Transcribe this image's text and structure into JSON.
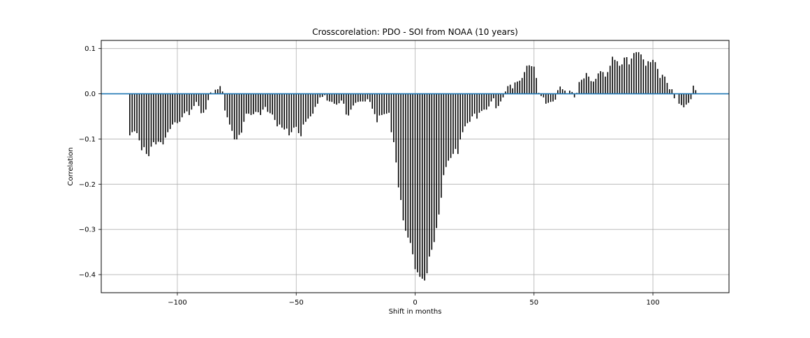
{
  "colors": {
    "stem": "#000000",
    "baseline": "#1f77b4",
    "grid": "#b0b0b0",
    "axes": "#000000",
    "background": "#ffffff"
  },
  "chart_data": {
    "type": "bar",
    "title": "Crosscorelation: PDO - SOI from NOAA (10 years)",
    "xlabel": "Shift in months",
    "ylabel": "Correlation",
    "xlim": [
      -132,
      132
    ],
    "ylim": [
      -0.44,
      0.118
    ],
    "grid": true,
    "legend": "none",
    "xticks": [
      {
        "value": -100,
        "label": "−100"
      },
      {
        "value": -50,
        "label": "−50"
      },
      {
        "value": 0,
        "label": "0"
      },
      {
        "value": 50,
        "label": "50"
      },
      {
        "value": 100,
        "label": "100"
      }
    ],
    "yticks": [
      {
        "value": 0.1,
        "label": "0.1"
      },
      {
        "value": 0.0,
        "label": "0.0"
      },
      {
        "value": -0.1,
        "label": "−0.1"
      },
      {
        "value": -0.2,
        "label": "−0.2"
      },
      {
        "value": -0.3,
        "label": "−0.3"
      },
      {
        "value": -0.4,
        "label": "−0.4"
      }
    ],
    "x_start": -120,
    "x_step": 1,
    "values": [
      -0.092,
      -0.085,
      -0.083,
      -0.087,
      -0.103,
      -0.125,
      -0.118,
      -0.133,
      -0.138,
      -0.117,
      -0.107,
      -0.112,
      -0.106,
      -0.107,
      -0.112,
      -0.097,
      -0.085,
      -0.078,
      -0.068,
      -0.063,
      -0.065,
      -0.062,
      -0.052,
      -0.043,
      -0.039,
      -0.047,
      -0.035,
      -0.027,
      -0.018,
      -0.027,
      -0.043,
      -0.042,
      -0.035,
      -0.014,
      0.003,
      0.001,
      0.009,
      0.01,
      0.017,
      0.005,
      -0.037,
      -0.052,
      -0.068,
      -0.082,
      -0.101,
      -0.101,
      -0.091,
      -0.086,
      -0.062,
      -0.044,
      -0.044,
      -0.047,
      -0.045,
      -0.04,
      -0.041,
      -0.047,
      -0.035,
      -0.029,
      -0.04,
      -0.043,
      -0.046,
      -0.058,
      -0.072,
      -0.068,
      -0.075,
      -0.079,
      -0.077,
      -0.092,
      -0.085,
      -0.075,
      -0.073,
      -0.087,
      -0.094,
      -0.068,
      -0.062,
      -0.055,
      -0.05,
      -0.044,
      -0.029,
      -0.022,
      -0.008,
      -0.007,
      -0.003,
      -0.015,
      -0.017,
      -0.018,
      -0.022,
      -0.024,
      -0.021,
      -0.015,
      -0.022,
      -0.046,
      -0.048,
      -0.035,
      -0.026,
      -0.02,
      -0.018,
      -0.017,
      -0.017,
      -0.017,
      -0.012,
      -0.018,
      -0.033,
      -0.045,
      -0.063,
      -0.048,
      -0.047,
      -0.045,
      -0.044,
      -0.042,
      -0.085,
      -0.107,
      -0.152,
      -0.207,
      -0.235,
      -0.28,
      -0.303,
      -0.318,
      -0.33,
      -0.355,
      -0.388,
      -0.395,
      -0.405,
      -0.409,
      -0.413,
      -0.397,
      -0.36,
      -0.345,
      -0.328,
      -0.297,
      -0.267,
      -0.23,
      -0.18,
      -0.162,
      -0.148,
      -0.142,
      -0.133,
      -0.122,
      -0.133,
      -0.101,
      -0.085,
      -0.072,
      -0.065,
      -0.062,
      -0.05,
      -0.044,
      -0.055,
      -0.042,
      -0.038,
      -0.035,
      -0.035,
      -0.028,
      -0.017,
      -0.01,
      -0.032,
      -0.027,
      -0.017,
      -0.008,
      0.005,
      0.017,
      0.02,
      0.012,
      0.025,
      0.027,
      0.029,
      0.035,
      0.048,
      0.062,
      0.063,
      0.061,
      0.06,
      0.035,
      0.002,
      -0.005,
      -0.008,
      -0.022,
      -0.02,
      -0.018,
      -0.017,
      -0.013,
      0.008,
      0.016,
      0.01,
      0.007,
      0.0,
      0.007,
      0.004,
      -0.008,
      0.002,
      0.026,
      0.031,
      0.034,
      0.046,
      0.038,
      0.028,
      0.027,
      0.033,
      0.045,
      0.05,
      0.048,
      0.038,
      0.048,
      0.062,
      0.082,
      0.075,
      0.072,
      0.062,
      0.065,
      0.08,
      0.081,
      0.065,
      0.078,
      0.09,
      0.092,
      0.092,
      0.087,
      0.076,
      0.062,
      0.072,
      0.07,
      0.075,
      0.07,
      0.055,
      0.035,
      0.042,
      0.038,
      0.024,
      0.01,
      0.01,
      -0.01,
      0.0,
      -0.022,
      -0.025,
      -0.03,
      -0.024,
      -0.02,
      -0.012,
      0.018,
      0.008
    ]
  }
}
